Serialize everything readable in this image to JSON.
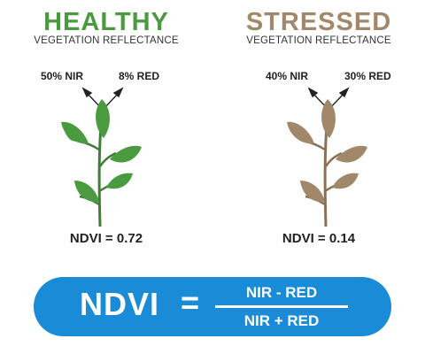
{
  "healthy": {
    "title": "HEALTHY",
    "subtitle": "VEGETATION REFLECTANCE",
    "nir_label": "50% NIR",
    "red_label": "8% RED",
    "ndvi": "NDVI = 0.72",
    "color": "#4a9a3f",
    "leaf_color": "#4a9a3f",
    "stem_color": "#3e7f35"
  },
  "stressed": {
    "title": "STRESSED",
    "subtitle": "VEGETATION REFLECTANCE",
    "nir_label": "40% NIR",
    "red_label": "30% RED",
    "ndvi": "NDVI = 0.14",
    "color": "#a1886b",
    "leaf_color": "#a1886b",
    "stem_color": "#8a7155"
  },
  "formula": {
    "lhs": "NDVI",
    "equals": "=",
    "numerator": "NIR - RED",
    "denominator": "NIR + RED",
    "background": "#1a8bd6"
  }
}
